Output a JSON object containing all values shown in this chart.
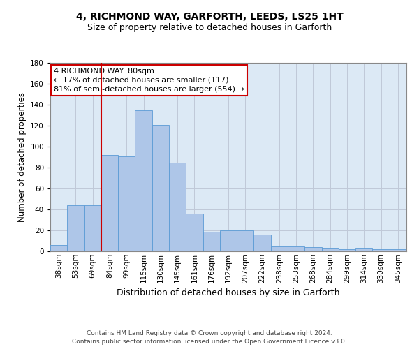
{
  "title1": "4, RICHMOND WAY, GARFORTH, LEEDS, LS25 1HT",
  "title2": "Size of property relative to detached houses in Garforth",
  "xlabel": "Distribution of detached houses by size in Garforth",
  "ylabel": "Number of detached properties",
  "categories": [
    "38sqm",
    "53sqm",
    "69sqm",
    "84sqm",
    "99sqm",
    "115sqm",
    "130sqm",
    "145sqm",
    "161sqm",
    "176sqm",
    "192sqm",
    "207sqm",
    "222sqm",
    "238sqm",
    "253sqm",
    "268sqm",
    "284sqm",
    "299sqm",
    "314sqm",
    "330sqm",
    "345sqm"
  ],
  "values": [
    6,
    44,
    44,
    92,
    91,
    135,
    121,
    85,
    36,
    19,
    20,
    20,
    16,
    5,
    5,
    4,
    3,
    2,
    3,
    2,
    2
  ],
  "bar_color": "#aec6e8",
  "bar_edge_color": "#5b9bd5",
  "background_color": "#ffffff",
  "axes_bg_color": "#dce9f5",
  "grid_color": "#c0c8d8",
  "vline_color": "#cc0000",
  "annotation_line1": "4 RICHMOND WAY: 80sqm",
  "annotation_line2": "← 17% of detached houses are smaller (117)",
  "annotation_line3": "81% of semi-detached houses are larger (554) →",
  "annotation_box_color": "#ffffff",
  "annotation_box_edge": "#cc0000",
  "footnote1": "Contains HM Land Registry data © Crown copyright and database right 2024.",
  "footnote2": "Contains public sector information licensed under the Open Government Licence v3.0.",
  "ylim": [
    0,
    180
  ],
  "yticks": [
    0,
    20,
    40,
    60,
    80,
    100,
    120,
    140,
    160,
    180
  ],
  "title1_fontsize": 10,
  "title2_fontsize": 9,
  "ylabel_fontsize": 8.5,
  "xlabel_fontsize": 9,
  "footnote_fontsize": 6.5,
  "annotation_fontsize": 8,
  "tick_fontsize": 7.5
}
